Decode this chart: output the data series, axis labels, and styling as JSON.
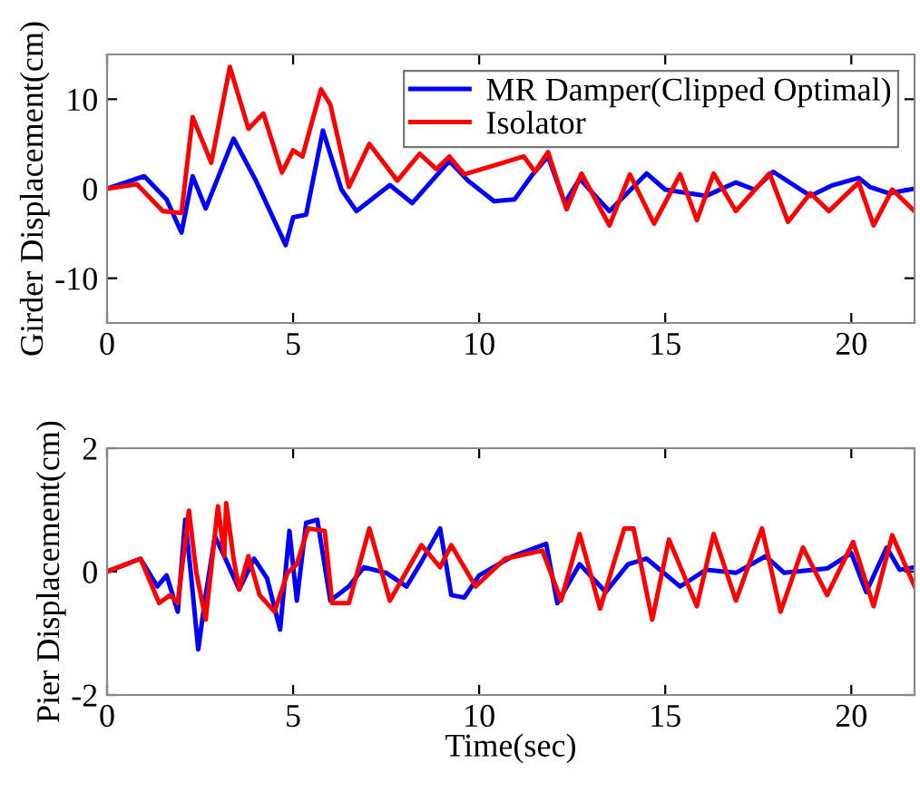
{
  "chart_data": [
    {
      "type": "line",
      "ylabel": "Girder Displacement(cm)",
      "xlim": [
        0,
        21.7
      ],
      "ylim": [
        -15,
        15
      ],
      "xticks": [
        0,
        5,
        10,
        15,
        20
      ],
      "yticks": [
        -10,
        0,
        10
      ],
      "legend": "top right",
      "grid": false,
      "series": [
        {
          "name": "MR Damper(Clipped Optimal)",
          "color": "#0000ff",
          "x": [
            0,
            1.0,
            1.6,
            2.0,
            2.3,
            2.65,
            3.4,
            4.0,
            4.8,
            5.0,
            5.35,
            5.8,
            6.3,
            6.7,
            7.6,
            8.2,
            9.2,
            9.7,
            10.4,
            10.95,
            11.4,
            11.85,
            12.3,
            12.7,
            13.5,
            14.5,
            15.0,
            16.1,
            16.9,
            17.4,
            17.9,
            18.9,
            19.5,
            20.2,
            20.5,
            21.0,
            21.7
          ],
          "values": [
            0,
            1.4,
            -1.2,
            -4.9,
            1.4,
            -2.2,
            5.6,
            0.9,
            -6.3,
            -3.2,
            -2.9,
            6.5,
            -0.1,
            -2.5,
            0.4,
            -1.6,
            3.1,
            0.9,
            -1.4,
            -1.2,
            1.4,
            3.6,
            -1.6,
            1.1,
            -2.5,
            1.7,
            -0.1,
            -0.8,
            0.7,
            -0.1,
            1.9,
            -0.8,
            0.4,
            1.2,
            0.2,
            -0.5,
            0
          ]
        },
        {
          "name": "Isolator",
          "color": "#ff0000",
          "x": [
            0,
            0.8,
            1.5,
            2.0,
            2.3,
            2.8,
            3.3,
            3.8,
            4.2,
            4.7,
            5.0,
            5.25,
            5.75,
            6.0,
            6.5,
            7.05,
            7.8,
            8.4,
            8.85,
            9.2,
            9.6,
            10.4,
            11.2,
            11.5,
            11.85,
            12.35,
            12.75,
            13.5,
            14.05,
            14.7,
            15.4,
            15.85,
            16.3,
            16.9,
            17.8,
            18.3,
            18.9,
            19.4,
            20.2,
            20.6,
            21.1,
            21.7
          ],
          "values": [
            0,
            0.5,
            -2.5,
            -2.7,
            8.0,
            2.9,
            13.6,
            6.7,
            8.4,
            1.8,
            4.3,
            3.6,
            11.1,
            9.4,
            0.2,
            5.0,
            0.9,
            3.9,
            2.2,
            3.6,
            1.6,
            2.6,
            3.6,
            1.9,
            4.1,
            -2.3,
            1.7,
            -4.1,
            1.6,
            -3.9,
            1.6,
            -3.5,
            1.7,
            -2.5,
            1.7,
            -3.7,
            -0.5,
            -2.5,
            0.7,
            -4.1,
            -0.1,
            -2.5
          ]
        }
      ]
    },
    {
      "type": "line",
      "xlabel": "Time(sec)",
      "ylabel": "Pier Displacement(cm)",
      "xlim": [
        0,
        21.7
      ],
      "ylim": [
        -2,
        2
      ],
      "xticks": [
        0,
        5,
        10,
        15,
        20
      ],
      "yticks": [
        -2,
        0,
        2
      ],
      "grid": false,
      "series": [
        {
          "color": "#0000ff",
          "x": [
            0,
            0.9,
            1.35,
            1.6,
            1.9,
            2.1,
            2.25,
            2.45,
            2.65,
            2.9,
            3.15,
            3.55,
            3.95,
            4.3,
            4.65,
            4.9,
            5.1,
            5.35,
            5.65,
            6.0,
            6.5,
            6.9,
            7.5,
            8.05,
            8.45,
            8.95,
            9.25,
            9.6,
            10.0,
            10.9,
            11.8,
            12.1,
            12.7,
            13.4,
            14.0,
            14.5,
            15.4,
            16.1,
            16.9,
            17.7,
            18.2,
            19.35,
            20.0,
            20.4,
            20.95,
            21.3,
            21.7
          ],
          "values": [
            0,
            0.21,
            -0.24,
            -0.06,
            -0.65,
            0.84,
            -0.02,
            -1.26,
            -0.38,
            0.57,
            0.25,
            -0.29,
            0.21,
            -0.11,
            -0.94,
            0.66,
            -0.47,
            0.79,
            0.84,
            -0.47,
            -0.24,
            0.07,
            -0.02,
            -0.24,
            0.16,
            0.7,
            -0.38,
            -0.42,
            -0.06,
            0.25,
            0.45,
            -0.51,
            0.12,
            -0.33,
            0.12,
            0.21,
            -0.24,
            0.03,
            -0.02,
            0.25,
            -0.02,
            0.05,
            0.3,
            -0.33,
            0.39,
            0.03,
            0.07
          ]
        },
        {
          "color": "#ff0000",
          "x": [
            0,
            0.9,
            1.4,
            1.7,
            1.9,
            2.2,
            2.4,
            2.65,
            2.98,
            3.15,
            3.2,
            3.4,
            3.55,
            3.8,
            4.1,
            4.5,
            4.85,
            5.1,
            5.4,
            5.85,
            6.05,
            6.5,
            7.05,
            7.6,
            8.45,
            8.95,
            9.25,
            9.9,
            10.7,
            11.7,
            12.2,
            12.7,
            13.25,
            13.9,
            14.15,
            14.65,
            15.1,
            15.85,
            16.3,
            16.9,
            17.6,
            18.1,
            18.7,
            19.35,
            20.05,
            20.6,
            21.1,
            21.7
          ],
          "values": [
            0,
            0.21,
            -0.51,
            -0.38,
            -0.51,
            0.99,
            -0.02,
            -0.78,
            1.06,
            0.25,
            1.11,
            0.21,
            -0.29,
            0.25,
            -0.38,
            -0.65,
            -0.02,
            0.12,
            0.7,
            0.66,
            -0.51,
            -0.51,
            0.7,
            -0.47,
            0.43,
            0.07,
            0.43,
            -0.24,
            0.21,
            0.34,
            -0.47,
            0.61,
            -0.6,
            0.7,
            0.7,
            -0.78,
            0.52,
            -0.56,
            0.61,
            -0.47,
            0.7,
            -0.65,
            0.39,
            -0.38,
            0.48,
            -0.56,
            0.59,
            -0.24
          ]
        }
      ]
    }
  ]
}
